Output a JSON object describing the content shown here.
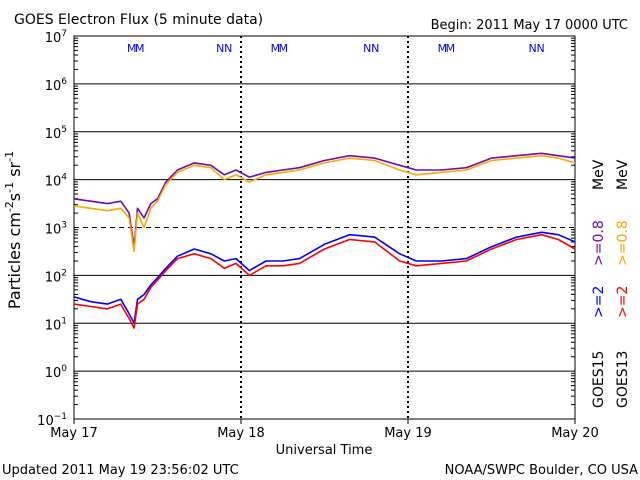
{
  "header": {
    "title": "GOES Electron Flux (5 minute data)",
    "begin": "Begin: 2011 May 17 0000 UTC"
  },
  "footer": {
    "updated": "Updated 2011 May 19 23:56:02 UTC",
    "credit": "NOAA/SWPC Boulder, CO USA"
  },
  "colors": {
    "goes15_08": "#6a0dad",
    "goes13_08": "#ffa500",
    "goes15_2": "#0000ff",
    "goes13_2": "#ff0000",
    "threshold": "#000000",
    "marker_m": "#0000ff",
    "marker_m2": "#ff0000"
  },
  "chart_data": {
    "type": "line",
    "title": "GOES Electron Flux (5 minute data)",
    "xlabel": "Universal Time",
    "ylabel_parts": {
      "base": "Particles cm",
      "sup1": "-2",
      "mid1": "s",
      "sup2": "-1",
      "mid2": "sr",
      "sup3": "-1"
    },
    "x_unit": "days since 2011 May 17 0000 UTC",
    "xlim": [
      0,
      3
    ],
    "x_ticks": [
      {
        "x": 0,
        "label": "May 17"
      },
      {
        "x": 1,
        "label": "May 18"
      },
      {
        "x": 2,
        "label": "May 19"
      },
      {
        "x": 3,
        "label": "May 20"
      }
    ],
    "y_scale": "log",
    "ylim_log10": [
      -1,
      7
    ],
    "y_tick_exponents": [
      7,
      6,
      5,
      4,
      3,
      2,
      1,
      0,
      -1
    ],
    "y_tick_base": "10",
    "threshold_log10": 3,
    "markers": [
      {
        "x": 0.37,
        "label": "M"
      },
      {
        "x": 0.9,
        "label": "N"
      },
      {
        "x": 1.23,
        "label": "M"
      },
      {
        "x": 1.78,
        "label": "N"
      },
      {
        "x": 2.23,
        "label": "M"
      },
      {
        "x": 2.77,
        "label": "N"
      }
    ],
    "legend": {
      "placement": "right",
      "satellites": [
        {
          "label": "GOES15",
          "color_key": "black"
        },
        {
          "label": "GOES13",
          "color_key": "black"
        }
      ],
      "groups": [
        {
          "unit": "MeV",
          "entries": [
            {
              "label": ">=0.8",
              "color": "#6a0dad"
            },
            {
              "label": ">=0.8",
              "color": "#ffa500"
            }
          ]
        },
        {
          "unit": "MeV",
          "entries": [
            {
              "label": ">=2",
              "color": "#0000ff"
            },
            {
              "label": ">=2",
              "color": "#ff0000"
            }
          ]
        }
      ]
    },
    "series": [
      {
        "name": "GOES15 >=0.8 MeV",
        "color": "#6a0dad",
        "x": [
          0.0,
          0.1,
          0.2,
          0.28,
          0.33,
          0.36,
          0.38,
          0.42,
          0.46,
          0.5,
          0.55,
          0.62,
          0.72,
          0.82,
          0.9,
          0.97,
          1.05,
          1.15,
          1.25,
          1.35,
          1.5,
          1.65,
          1.8,
          1.95,
          2.05,
          2.2,
          2.35,
          2.5,
          2.65,
          2.8,
          2.9,
          3.0
        ],
        "y_log10": [
          3.6,
          3.55,
          3.5,
          3.55,
          3.3,
          2.6,
          3.4,
          3.2,
          3.5,
          3.6,
          3.95,
          4.2,
          4.35,
          4.3,
          4.1,
          4.2,
          4.05,
          4.15,
          4.2,
          4.25,
          4.4,
          4.5,
          4.45,
          4.3,
          4.2,
          4.2,
          4.25,
          4.45,
          4.5,
          4.55,
          4.5,
          4.45
        ]
      },
      {
        "name": "GOES13 >=0.8 MeV",
        "color": "#ffa500",
        "x": [
          0.0,
          0.1,
          0.2,
          0.28,
          0.33,
          0.36,
          0.38,
          0.42,
          0.46,
          0.5,
          0.55,
          0.62,
          0.72,
          0.82,
          0.9,
          0.97,
          1.05,
          1.15,
          1.25,
          1.35,
          1.5,
          1.65,
          1.8,
          1.95,
          2.05,
          2.2,
          2.35,
          2.5,
          2.65,
          2.8,
          2.9,
          3.0
        ],
        "y_log10": [
          3.45,
          3.4,
          3.35,
          3.4,
          3.2,
          2.5,
          3.3,
          3.0,
          3.4,
          3.55,
          3.9,
          4.15,
          4.3,
          4.25,
          4.0,
          4.1,
          3.95,
          4.1,
          4.15,
          4.2,
          4.35,
          4.45,
          4.4,
          4.2,
          4.1,
          4.15,
          4.2,
          4.4,
          4.45,
          4.5,
          4.45,
          4.35
        ]
      },
      {
        "name": "GOES15 >=2 MeV",
        "color": "#0000ff",
        "x": [
          0.0,
          0.1,
          0.2,
          0.28,
          0.33,
          0.36,
          0.38,
          0.42,
          0.46,
          0.5,
          0.55,
          0.62,
          0.72,
          0.82,
          0.9,
          0.97,
          1.05,
          1.15,
          1.25,
          1.35,
          1.5,
          1.65,
          1.8,
          1.95,
          2.05,
          2.2,
          2.35,
          2.5,
          2.65,
          2.8,
          2.9,
          3.0
        ],
        "y_log10": [
          1.55,
          1.45,
          1.4,
          1.5,
          1.2,
          1.0,
          1.5,
          1.6,
          1.8,
          1.95,
          2.15,
          2.4,
          2.55,
          2.45,
          2.3,
          2.35,
          2.1,
          2.3,
          2.3,
          2.35,
          2.65,
          2.85,
          2.8,
          2.45,
          2.3,
          2.3,
          2.35,
          2.6,
          2.8,
          2.9,
          2.85,
          2.7
        ]
      },
      {
        "name": "GOES13 >=2 MeV",
        "color": "#ff0000",
        "x": [
          0.0,
          0.1,
          0.2,
          0.28,
          0.33,
          0.36,
          0.38,
          0.42,
          0.46,
          0.5,
          0.55,
          0.62,
          0.72,
          0.82,
          0.9,
          0.97,
          1.05,
          1.15,
          1.25,
          1.35,
          1.5,
          1.65,
          1.8,
          1.95,
          2.05,
          2.2,
          2.35,
          2.5,
          2.65,
          2.8,
          2.9,
          3.0
        ],
        "y_log10": [
          1.4,
          1.35,
          1.3,
          1.4,
          1.1,
          0.9,
          1.4,
          1.5,
          1.75,
          1.9,
          2.1,
          2.35,
          2.45,
          2.35,
          2.15,
          2.25,
          2.0,
          2.2,
          2.2,
          2.25,
          2.55,
          2.75,
          2.7,
          2.3,
          2.2,
          2.25,
          2.3,
          2.55,
          2.75,
          2.85,
          2.75,
          2.55
        ]
      }
    ]
  }
}
